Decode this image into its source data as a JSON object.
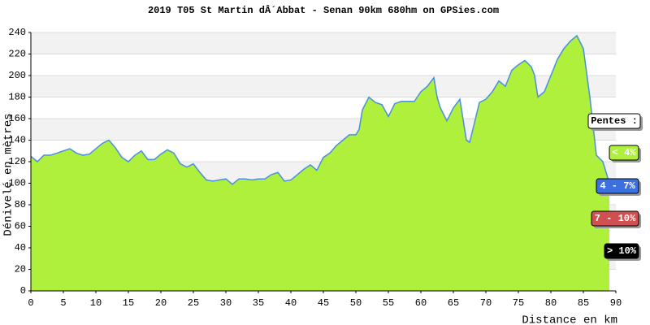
{
  "chart_data": {
    "type": "area",
    "title": "2019 T05 St Martin dÂ´Abbat - Senan 90km 680hm on GPSies.com",
    "y_label": "Dénivelé en mètres",
    "x_label": "Distance en km",
    "x": [
      0,
      1,
      2,
      3,
      4,
      5,
      6,
      7,
      8,
      9,
      10,
      11,
      12,
      13,
      14,
      15,
      16,
      17,
      18,
      19,
      20,
      21,
      22,
      23,
      24,
      25,
      26,
      27,
      28,
      29,
      30,
      31,
      32,
      33,
      34,
      35,
      36,
      37,
      38,
      39,
      40,
      41,
      42,
      43,
      44,
      45,
      46,
      47,
      48,
      49,
      50,
      50.5,
      51,
      52,
      53,
      54,
      55,
      56,
      57,
      58,
      59,
      60,
      61,
      62,
      62.5,
      63,
      64,
      65,
      66,
      67,
      67.5,
      68,
      69,
      70,
      71,
      72,
      73,
      74,
      75,
      76,
      77,
      77.5,
      78,
      79,
      80,
      81,
      82,
      83,
      84,
      85,
      86,
      87,
      88,
      89
    ],
    "values": [
      125,
      120,
      126,
      126,
      128,
      130,
      132,
      128,
      126,
      127,
      132,
      137,
      140,
      133,
      124,
      120,
      126,
      130,
      122,
      122,
      127,
      131,
      128,
      118,
      115,
      118,
      110,
      103,
      102,
      103,
      104,
      99,
      104,
      104,
      103,
      104,
      104,
      108,
      110,
      102,
      103,
      108,
      113,
      117,
      112,
      124,
      128,
      135,
      140,
      145,
      145,
      150,
      168,
      180,
      175,
      173,
      162,
      174,
      176,
      176,
      176,
      185,
      190,
      198,
      180,
      170,
      158,
      170,
      178,
      140,
      138,
      150,
      175,
      178,
      185,
      195,
      190,
      205,
      210,
      214,
      208,
      200,
      180,
      185,
      200,
      215,
      225,
      232,
      237,
      225,
      180,
      126,
      120,
      100
    ],
    "fill": "#aef03c",
    "line_color": "#4a8fe0",
    "xlim": [
      0,
      90
    ],
    "ylim": [
      0,
      240
    ],
    "xticks": [
      0,
      5,
      10,
      15,
      20,
      25,
      30,
      35,
      40,
      45,
      50,
      55,
      60,
      65,
      70,
      75,
      80,
      85,
      90
    ],
    "yticks": [
      0,
      20,
      40,
      60,
      80,
      100,
      120,
      140,
      160,
      180,
      200,
      220,
      240
    ],
    "grid": true,
    "legend": {
      "title": "Pentes :",
      "items": [
        {
          "label": "< 4%",
          "color": "#aef03c"
        },
        {
          "label": "4 - 7%",
          "color": "#3c6fe0"
        },
        {
          "label": "7 - 10%",
          "color": "#d05050"
        },
        {
          "label": "> 10%",
          "color": "#000000"
        }
      ]
    }
  }
}
